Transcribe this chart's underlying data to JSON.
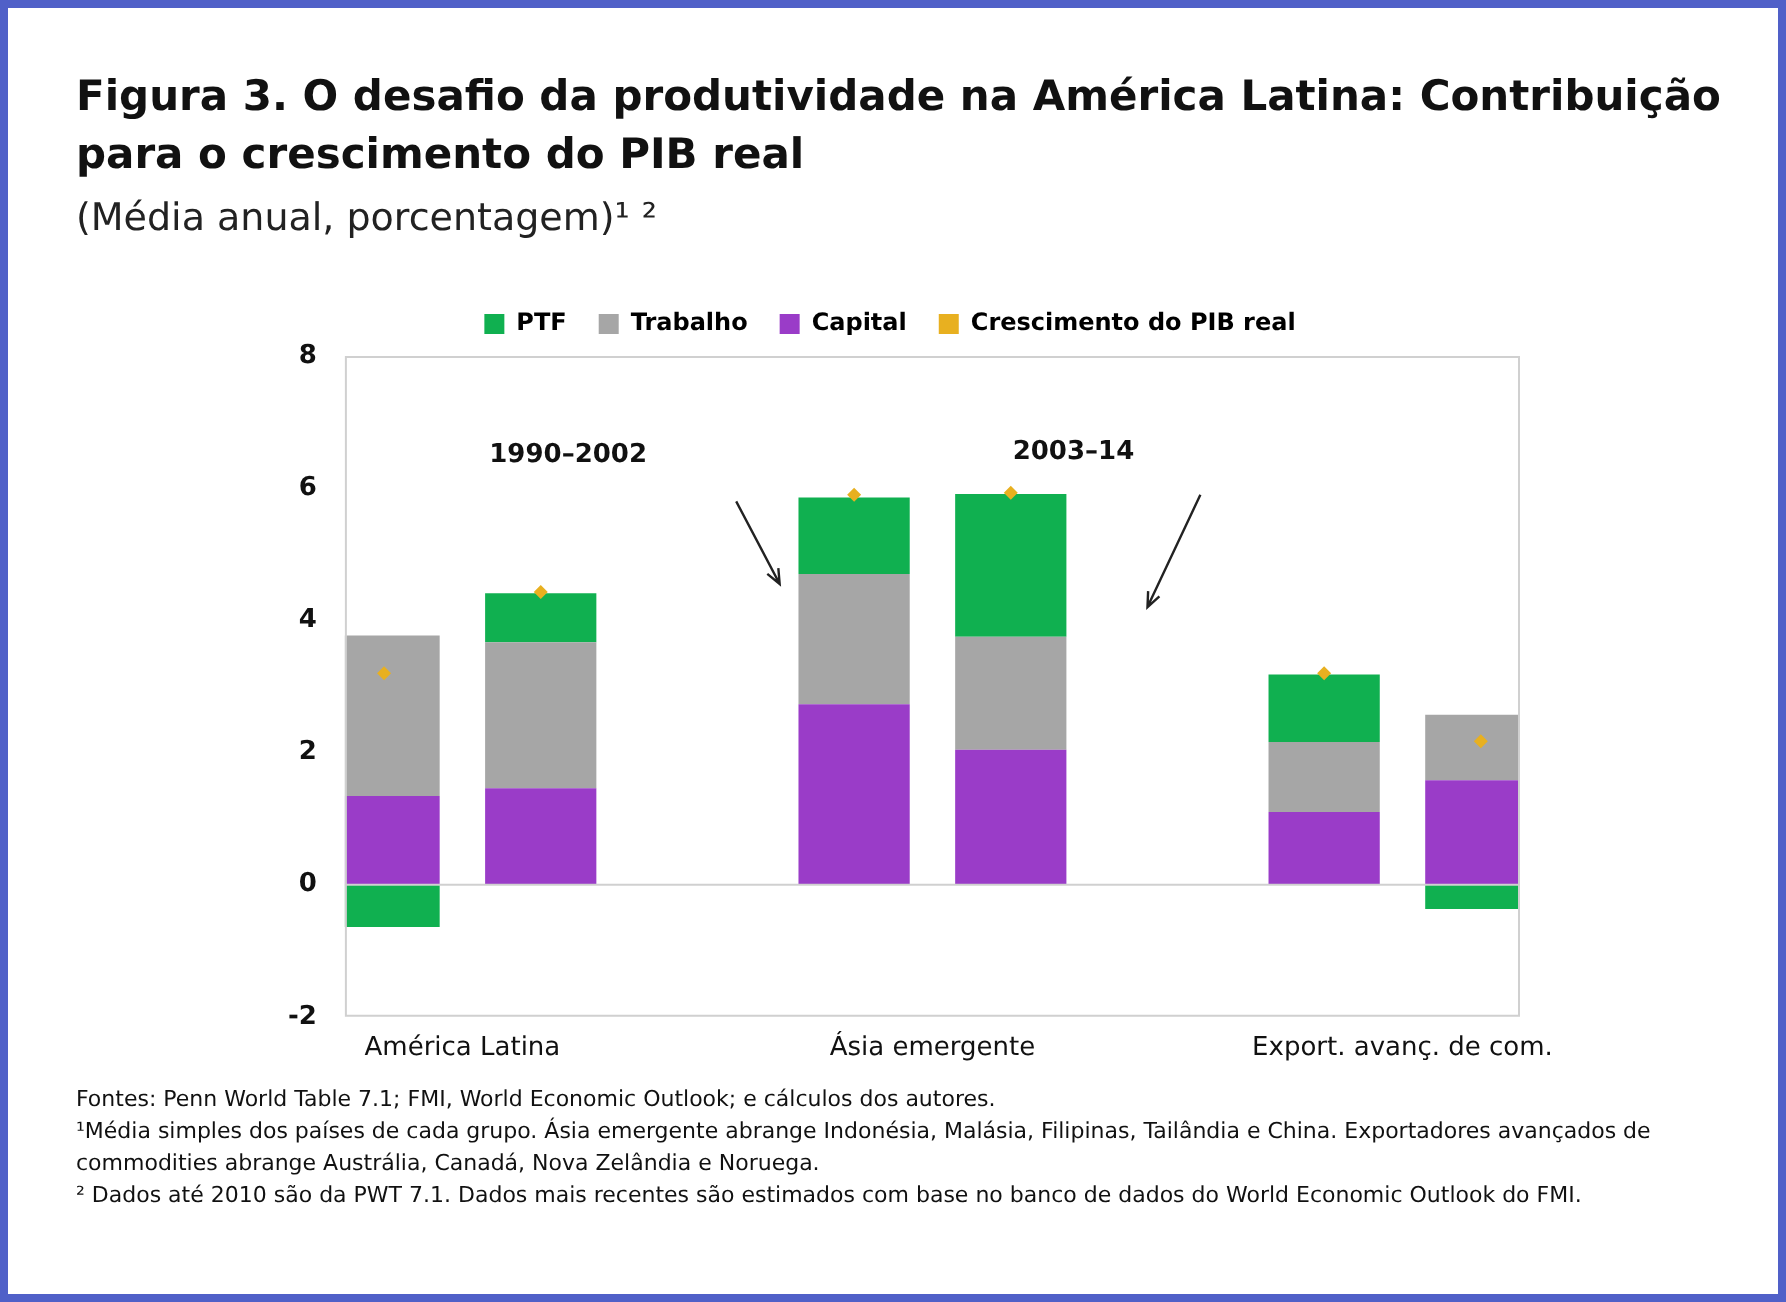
{
  "chart_data": {
    "type": "bar",
    "stacked": true,
    "title": "Figura 3. O desafio da produtividade na América Latina: Contribuição para o crescimento do PIB real",
    "subtitle": "(Média anual, porcentagem)¹ ²",
    "categories": [
      null,
      "América Latina",
      null,
      null,
      null,
      null,
      null,
      "Ásia emergente",
      null,
      null,
      null,
      null,
      null,
      "Export. avanç. de com.",
      null
    ],
    "series": [
      {
        "name": "Capital",
        "color": "#9a3cc8",
        "values": [
          1.34,
          null,
          1.46,
          null,
          null,
          null,
          2.73,
          null,
          2.04,
          null,
          null,
          null,
          1.1,
          null,
          1.58
        ]
      },
      {
        "name": "Trabalho",
        "color": "#a6a6a6",
        "values": [
          2.43,
          null,
          2.21,
          null,
          null,
          null,
          1.97,
          null,
          1.71,
          null,
          null,
          null,
          1.06,
          null,
          0.99
        ]
      },
      {
        "name": "PTF",
        "color": "#10b050",
        "values": [
          -0.64,
          null,
          0.74,
          null,
          null,
          null,
          1.16,
          null,
          2.16,
          null,
          null,
          null,
          1.02,
          null,
          -0.37
        ]
      },
      {
        "name": "Crescimento do PIB real",
        "type": "scatter",
        "marker": "diamond",
        "color": "#e8b020",
        "values": [
          3.2,
          null,
          4.43,
          null,
          null,
          null,
          5.9,
          null,
          5.93,
          null,
          null,
          null,
          3.2,
          null,
          2.17
        ]
      }
    ],
    "ref_lines": [
      {
        "axis": "y",
        "value": 0,
        "color": "#d0d0d0"
      }
    ],
    "ylim": [
      -2,
      8
    ],
    "yticks": [
      -2,
      0,
      2,
      4,
      6,
      8
    ],
    "grid": false,
    "legend": "top",
    "annotations": [
      "1990–2002",
      "2003–14",
      "Fontes: Penn World Table 7.1; FMI, World Economic Outlook; e cálculos dos autores.",
      "¹Média simples dos países de cada grupo. Ásia emergente abrange Indonésia, Malásia, Filipinas, Tailândia e China. Exportadores avançados de commodities abrange Austrália, Canadá, Nova Zelândia e Noruega.",
      "² Dados até 2010 são da PWT 7.1. Dados mais recentes são estimados com base no banco de dados do World Economic Outlook do FMI."
    ]
  }
}
